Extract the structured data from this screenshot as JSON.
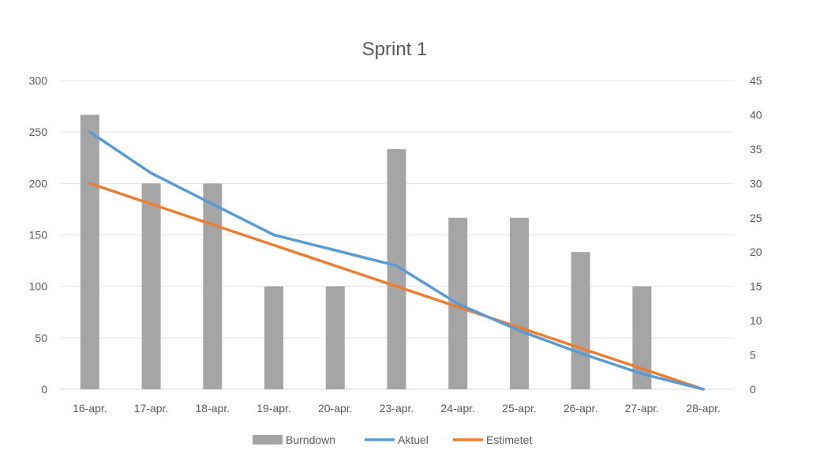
{
  "chart_data": {
    "type": "bar",
    "title": "Sprint 1",
    "categories": [
      "16-apr.",
      "17-apr.",
      "18-apr.",
      "19-apr.",
      "20-apr.",
      "23-apr.",
      "24-apr.",
      "25-apr.",
      "26-apr.",
      "27-apr.",
      "28-apr."
    ],
    "left_axis": {
      "ylim": [
        0,
        300
      ],
      "ticks": [
        "0",
        "50",
        "100",
        "150",
        "200",
        "250",
        "300"
      ]
    },
    "right_axis": {
      "ylim": [
        0,
        45
      ],
      "ticks": [
        "0",
        "5",
        "10",
        "15",
        "20",
        "25",
        "30",
        "35",
        "40",
        "45"
      ]
    },
    "series": [
      {
        "name": "Burndown",
        "kind": "bar",
        "axis": "right",
        "color": "#a5a5a5",
        "values": [
          40,
          30,
          30,
          15,
          15,
          35,
          25,
          25,
          20,
          15,
          0
        ]
      },
      {
        "name": "Aktuel",
        "kind": "line",
        "axis": "left",
        "color": "#5b9bd5",
        "values": [
          250,
          210,
          180,
          150,
          135,
          120,
          83,
          57,
          35,
          15,
          0
        ]
      },
      {
        "name": "Estimetet",
        "kind": "line",
        "axis": "left",
        "color": "#ed7d31",
        "values": [
          200,
          180,
          160,
          140,
          120,
          100,
          80,
          60,
          40,
          20,
          0
        ]
      }
    ],
    "grid": true,
    "legend_position": "bottom"
  }
}
